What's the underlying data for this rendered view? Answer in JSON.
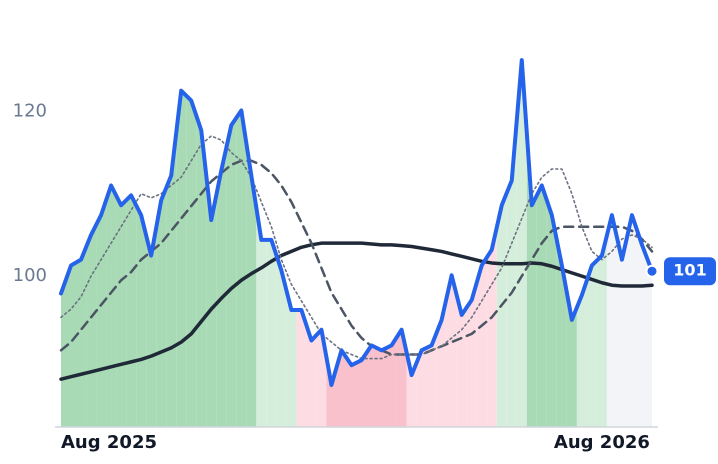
{
  "chart_data": {
    "type": "line",
    "categories": [
      "Aug 2025",
      null,
      null,
      null,
      null,
      null,
      null,
      null,
      null,
      null,
      null,
      null,
      null,
      null,
      null,
      null,
      null,
      null,
      null,
      null,
      null,
      null,
      null,
      null,
      null,
      null,
      null,
      null,
      null,
      null,
      null,
      null,
      null,
      null,
      null,
      null,
      null,
      null,
      null,
      null,
      null,
      null,
      null,
      null,
      null,
      null,
      null,
      null,
      null,
      null,
      null,
      null,
      null,
      null,
      "Aug 2026",
      null,
      null,
      null,
      null,
      null
    ],
    "series": [
      {
        "color": "#2563eb",
        "dash": "solid",
        "width": 4,
        "values": [
          97.9,
          101.3,
          102,
          105,
          107.4,
          111,
          108.6,
          109.8,
          107.4,
          102.5,
          109.2,
          112.2,
          122.5,
          121.3,
          117.7,
          106.8,
          112.8,
          118.3,
          120.1,
          112.2,
          104.4,
          104.4,
          100.7,
          95.9,
          95.9,
          92.2,
          93.5,
          86.8,
          91,
          89.2,
          89.8,
          91.6,
          91,
          91.6,
          93.5,
          88,
          91,
          91.6,
          94.7,
          100.1,
          95.3,
          97.1,
          101.3,
          103.2,
          108.6,
          111.6,
          126.2,
          108.6,
          111,
          107.4,
          101.3,
          94.7,
          97.7,
          101.3,
          102.5,
          107.4,
          102,
          107.4,
          103.8,
          100.6
        ],
        "value_labels": [
          null,
          null,
          null,
          null,
          null,
          null,
          null,
          null,
          null,
          null,
          null,
          null,
          null,
          null,
          null,
          null,
          null,
          null,
          null,
          null,
          null,
          null,
          null,
          null,
          null,
          null,
          null,
          null,
          null,
          null,
          null,
          null,
          null,
          null,
          null,
          null,
          null,
          null,
          null,
          null,
          null,
          null,
          null,
          null,
          null,
          null,
          null,
          null,
          null,
          null,
          null,
          null,
          null,
          null,
          null,
          null,
          null,
          null,
          null,
          "101"
        ],
        "fill_colors": [
          "#a8dab5",
          "#a8dab5",
          "#a8dab5",
          "#a8dab5",
          "#a8dab5",
          "#a8dab5",
          "#a8dab5",
          "#a8dab5",
          "#a8dab5",
          "#a8dab5",
          "#a8dab5",
          "#a8dab5",
          "#a8dab5",
          "#a8dab5",
          "#a8dab5",
          "#a8dab5",
          "#a8dab5",
          "#a8dab5",
          "#a8dab5",
          "#a8dab5",
          "#d5eedc",
          "#d5eedc",
          "#d5eedc",
          "#d5eedc",
          "#fddde3",
          "#fddde3",
          "#fddde3",
          "#f8c1cb",
          "#f8c1cb",
          "#f8c1cb",
          "#f8c1cb",
          "#f8c1cb",
          "#f8c1cb",
          "#f8c1cb",
          "#f8c1cb",
          "#fddde3",
          "#fddde3",
          "#fddde3",
          "#fddde3",
          "#fddde3",
          "#fddde3",
          "#fddde3",
          "#fddde3",
          "#fddde3",
          "#d5eedc",
          "#d5eedc",
          "#d5eedc",
          "#a8dab5",
          "#a8dab5",
          "#a8dab5",
          "#a8dab5",
          "#a8dab5",
          "#d5eedc",
          "#d5eedc",
          "#d5eedc",
          "#f3f4f7",
          "#f3f4f7",
          "#f3f4f7",
          "#f3f4f7",
          "#f3f4f7"
        ]
      },
      {
        "color": "#6b7280",
        "dash": "dotted",
        "width": 1.6,
        "values": [
          95,
          96,
          97.5,
          100,
          102,
          104,
          106,
          108,
          110,
          109.5,
          110,
          111,
          112,
          114,
          116,
          117,
          116.5,
          115,
          114,
          112,
          109,
          106,
          102,
          99,
          97,
          95,
          93,
          92,
          91,
          90.5,
          90,
          90,
          90,
          90.5,
          90.5,
          90.5,
          90.5,
          91,
          91.5,
          92.5,
          93.5,
          95,
          97,
          99,
          101,
          104,
          107,
          110,
          112,
          113,
          113,
          110,
          106,
          103,
          102,
          103,
          104.5,
          105,
          104.5,
          103.5
        ]
      },
      {
        "color": "#4b5563",
        "dash": "dashed",
        "width": 2.5,
        "values": [
          91,
          92,
          93.5,
          95,
          96.5,
          98,
          99.5,
          100.5,
          102,
          103,
          104,
          105.5,
          107,
          108.5,
          110,
          111.5,
          112.5,
          113.5,
          114,
          114,
          113.5,
          112.5,
          111,
          109,
          106.5,
          104,
          101,
          98,
          96,
          94,
          92.5,
          91.5,
          91,
          90.5,
          90.5,
          90.5,
          90.5,
          91,
          91.5,
          92,
          92.5,
          93,
          94,
          95,
          96.5,
          98,
          100,
          102,
          104,
          105.5,
          106,
          106,
          106,
          106,
          106,
          106,
          106,
          105.5,
          104.5,
          103
        ]
      },
      {
        "color": "#1f2937",
        "dash": "solid",
        "width": 3.5,
        "values": [
          87.5,
          87.8,
          88.1,
          88.4,
          88.7,
          89,
          89.3,
          89.6,
          89.9,
          90.3,
          90.8,
          91.3,
          92,
          93,
          94.5,
          96,
          97.3,
          98.5,
          99.5,
          100.3,
          101,
          101.8,
          102.5,
          103,
          103.5,
          103.8,
          104,
          104,
          104,
          104,
          104,
          103.9,
          103.8,
          103.8,
          103.7,
          103.6,
          103.4,
          103.2,
          103,
          102.7,
          102.4,
          102.1,
          101.8,
          101.6,
          101.5,
          101.5,
          101.5,
          101.6,
          101.5,
          101.2,
          100.8,
          100.4,
          100,
          99.6,
          99.2,
          98.9,
          98.8,
          98.8,
          98.8,
          98.9
        ]
      }
    ],
    "ylim": [
      81.7,
      133.5
    ],
    "yticks": [
      100,
      120
    ],
    "grid": false
  }
}
